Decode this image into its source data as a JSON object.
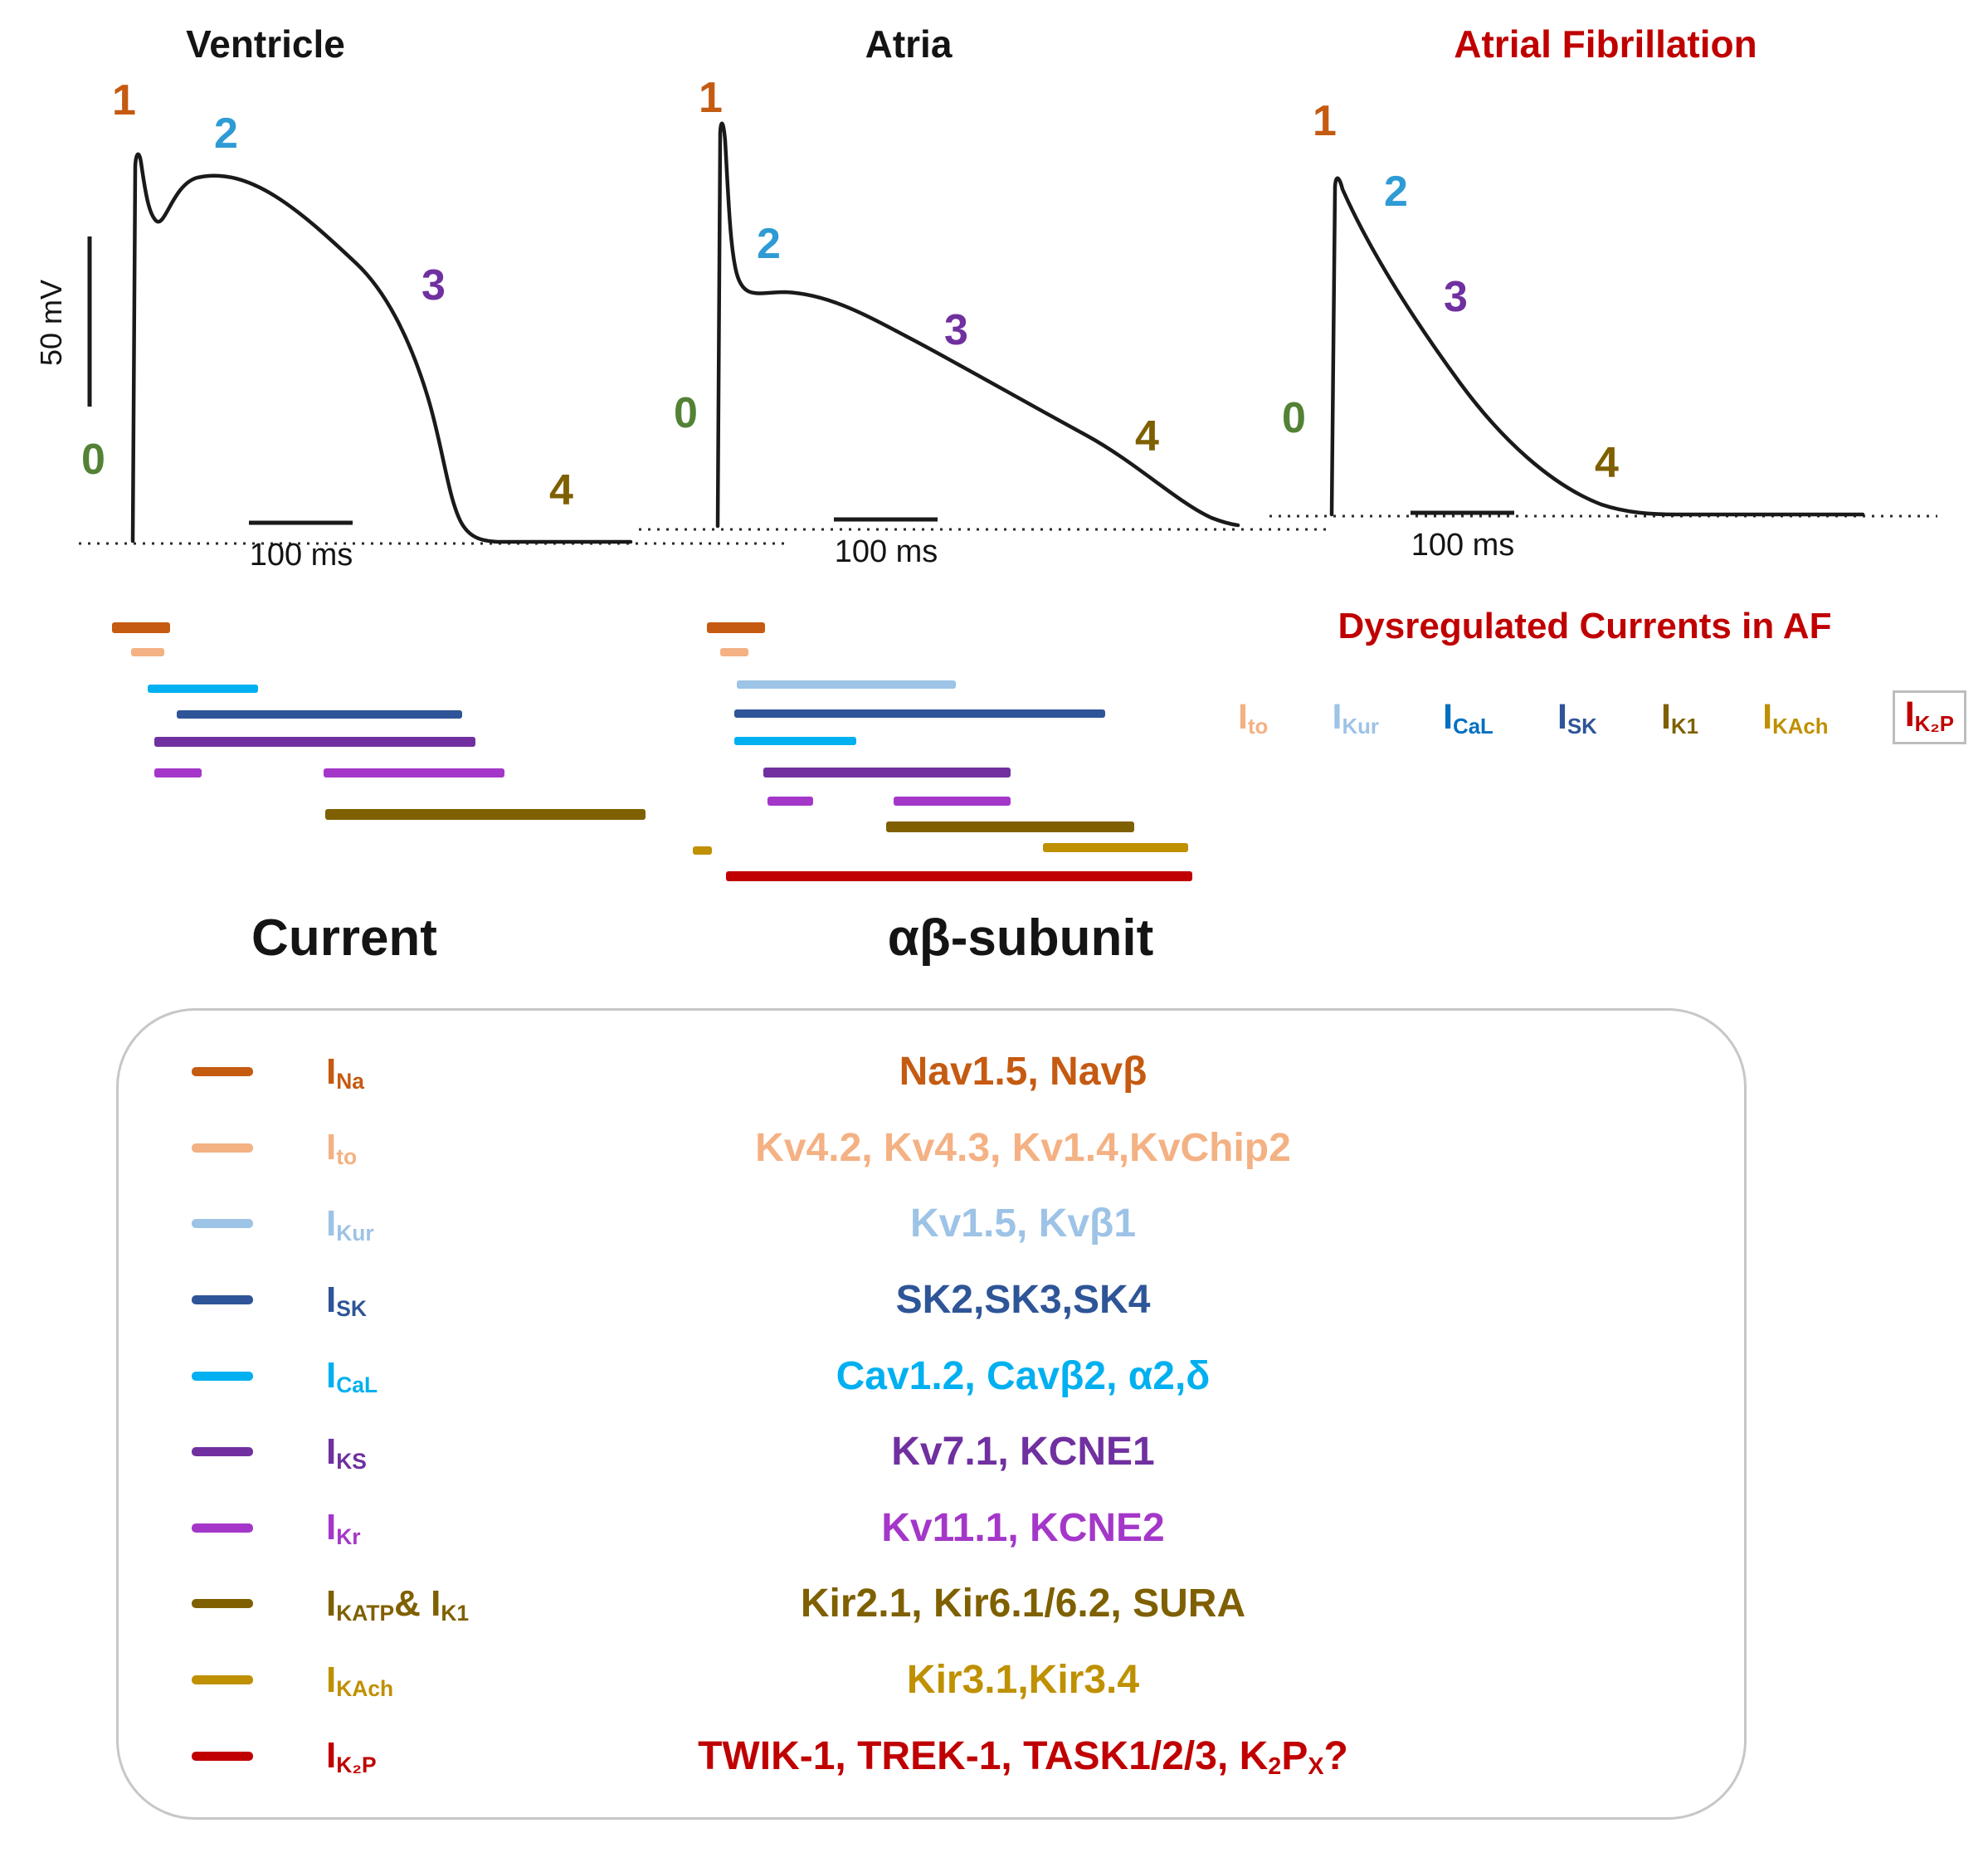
{
  "palette": {
    "ina": "#c55a11",
    "ito": "#f4b183",
    "ikur": "#9dc3e6",
    "isk": "#2e5597",
    "ical": "#00b0f0",
    "ical_dark": "#0070c0",
    "iks": "#7030a0",
    "ikr": "#a437c9",
    "ik1": "#7f6000",
    "ikach": "#bf9000",
    "ik2p": "#c00000",
    "af_red": "#c00000",
    "phase0": "#538135",
    "phase1": "#c55a11",
    "phase2": "#2e9bd5",
    "phase3": "#7030a0",
    "phase4": "#7f6000",
    "trace": "#1a1a1a"
  },
  "voltage_scale": "50 mV",
  "panels": [
    {
      "title": "Ventricle",
      "time_scale": "100 ms",
      "phases": [
        "0",
        "1",
        "2",
        "3",
        "4"
      ]
    },
    {
      "title": "Atria",
      "time_scale": "100 ms",
      "phases": [
        "0",
        "1",
        "2",
        "3",
        "4"
      ]
    },
    {
      "title": "Atrial Fibrillation",
      "time_scale": "100 ms",
      "phases": [
        "0",
        "1",
        "2",
        "3",
        "4"
      ]
    }
  ],
  "dysregulated": {
    "title": "Dysregulated Currents in AF",
    "items": [
      {
        "sym": "I",
        "sub": "to",
        "color": "#f4b183"
      },
      {
        "sym": "I",
        "sub": "Kur",
        "color": "#9dc3e6"
      },
      {
        "sym": "I",
        "sub": "CaL",
        "color": "#0070c0"
      },
      {
        "sym": "I",
        "sub": "SK",
        "color": "#2e5597"
      },
      {
        "sym": "I",
        "sub": "K1",
        "color": "#7f6000"
      },
      {
        "sym": "I",
        "sub": "KAch",
        "color": "#bf9000"
      },
      {
        "sym": "I",
        "sub": "K₂P",
        "color": "#c00000"
      }
    ]
  },
  "table": {
    "col_current": "Current",
    "col_subunit": "αβ-subunit",
    "rows": [
      {
        "current": [
          {
            "t": "I"
          },
          {
            "s": "Na"
          }
        ],
        "subunits": "Nav1.5, Navβ",
        "color": "#c55a11"
      },
      {
        "current": [
          {
            "t": "I"
          },
          {
            "s": "to"
          }
        ],
        "subunits": "Kv4.2, Kv4.3, Kv1.4,KvChip2",
        "color": "#f4b183"
      },
      {
        "current": [
          {
            "t": "I"
          },
          {
            "s": "Kur"
          }
        ],
        "subunits": "Kv1.5, Kvβ1",
        "color": "#9dc3e6"
      },
      {
        "current": [
          {
            "t": "I"
          },
          {
            "s": "SK"
          }
        ],
        "subunits": "SK2,SK3,SK4",
        "color": "#2e5597"
      },
      {
        "current": [
          {
            "t": "I"
          },
          {
            "s": "CaL"
          }
        ],
        "subunits": "Cav1.2, Cavβ2, α2,δ",
        "color": "#00b0f0"
      },
      {
        "current": [
          {
            "t": "I"
          },
          {
            "s": "KS"
          }
        ],
        "subunits": "Kv7.1, KCNE1",
        "color": "#7030a0"
      },
      {
        "current": [
          {
            "t": "I"
          },
          {
            "s": "Kr"
          }
        ],
        "subunits": "Kv11.1, KCNE2",
        "color": "#a437c9"
      },
      {
        "current": [
          {
            "t": "I"
          },
          {
            "s": "KATP"
          },
          {
            "t": "& I"
          },
          {
            "s": "K1"
          }
        ],
        "subunits": "Kir2.1, Kir6.1/6.2, SURA",
        "color": "#7f6000"
      },
      {
        "current": [
          {
            "t": "I"
          },
          {
            "s": "KAch"
          }
        ],
        "subunits": "Kir3.1,Kir3.4",
        "color": "#bf9000"
      },
      {
        "current": [
          {
            "t": "I"
          },
          {
            "s": "K₂P"
          }
        ],
        "subunits": [
          {
            "t": "TWIK-1, TREK-1, TASK1/2/3, K"
          },
          {
            "s": "2"
          },
          {
            "t": "P"
          },
          {
            "s": "X"
          },
          {
            "t": "?"
          }
        ],
        "color": "#c00000"
      }
    ]
  }
}
